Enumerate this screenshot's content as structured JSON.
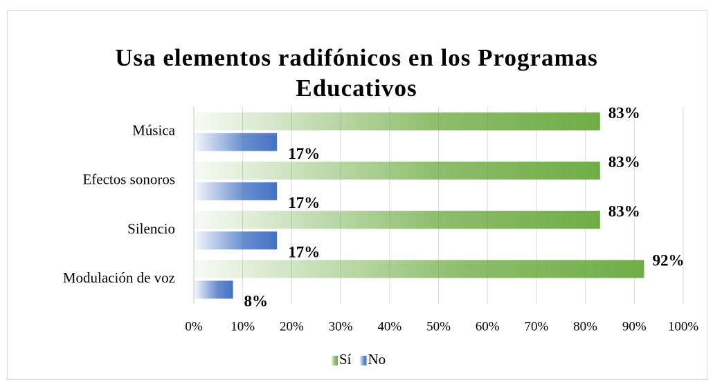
{
  "chart_data": {
    "type": "hbar",
    "title": "Usa elementos radifónicos en los Programas Educativos",
    "categories": [
      "Música",
      "Efectos sonoros",
      "Silencio",
      "Modulación de voz"
    ],
    "series": [
      {
        "name": "Sí",
        "color": "#70ad47",
        "values": [
          83,
          83,
          83,
          92
        ],
        "value_labels": [
          "83%",
          "83%",
          "83%",
          "92%"
        ]
      },
      {
        "name": "No",
        "color": "#4472c4",
        "values": [
          17,
          17,
          17,
          8
        ],
        "value_labels": [
          "17%",
          "17%",
          "17%",
          "8%"
        ]
      }
    ],
    "xlim": [
      0,
      100
    ],
    "xticks": [
      {
        "value": 0,
        "label": "0%"
      },
      {
        "value": 10,
        "label": "10%"
      },
      {
        "value": 20,
        "label": "20%"
      },
      {
        "value": 30,
        "label": "30%"
      },
      {
        "value": 40,
        "label": "40%"
      },
      {
        "value": 50,
        "label": "50%"
      },
      {
        "value": 60,
        "label": "60%"
      },
      {
        "value": 70,
        "label": "70%"
      },
      {
        "value": 80,
        "label": "80%"
      },
      {
        "value": 90,
        "label": "90%"
      },
      {
        "value": 100,
        "label": "100%"
      }
    ],
    "grid": true,
    "legend": "bottom"
  }
}
